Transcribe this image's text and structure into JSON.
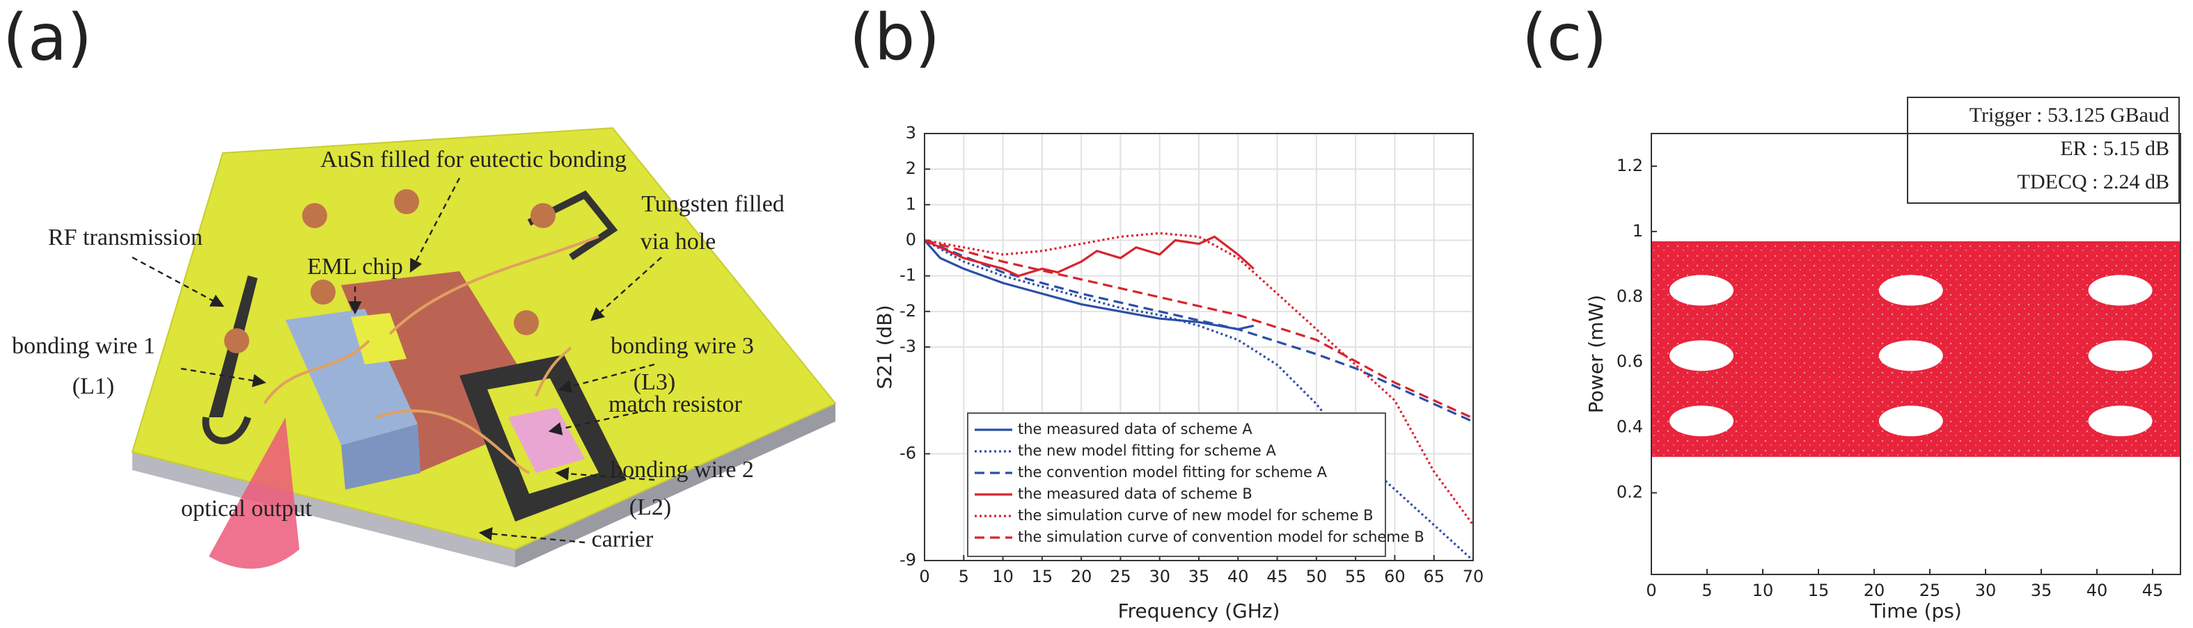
{
  "panel_labels": [
    "(a)",
    "(b)",
    "(c)"
  ],
  "diagram": {
    "labels": [
      "AuSn filled for eutectic bonding",
      "Tungsten filled",
      "via hole",
      "RF transmission",
      "EML chip",
      "bonding wire 3",
      "(L3)",
      "bonding wire 1",
      "(L1)",
      "match resistor",
      "bonding wire 2",
      "(L2)",
      "optical output",
      "carrier"
    ]
  },
  "chart_data": [
    {
      "type": "line",
      "xlabel": "Frequency (GHz)",
      "ylabel": "S21 (dB)",
      "xlim": [
        0,
        70
      ],
      "xticks": [
        0,
        5,
        10,
        15,
        20,
        25,
        30,
        35,
        40,
        45,
        50,
        55,
        60,
        65,
        70
      ],
      "ylim": [
        -9,
        3
      ],
      "yticks": [
        -9,
        -6,
        -3,
        -2,
        -1,
        0,
        1,
        2,
        3
      ],
      "grid": true,
      "series": [
        {
          "name": "the measured data of scheme A",
          "color": "#2b4ea8",
          "style": "solid",
          "x": [
            0,
            2,
            5,
            10,
            15,
            20,
            25,
            30,
            35,
            40,
            42
          ],
          "values": [
            0,
            -0.5,
            -0.8,
            -1.2,
            -1.5,
            -1.8,
            -2.0,
            -2.2,
            -2.3,
            -2.5,
            -2.4
          ]
        },
        {
          "name": "the new model fitting for scheme A",
          "color": "#2b4ea8",
          "style": "dotted",
          "x": [
            0,
            5,
            10,
            15,
            20,
            25,
            30,
            35,
            40,
            45,
            50,
            55,
            60,
            65,
            70
          ],
          "values": [
            0,
            -0.6,
            -1.0,
            -1.3,
            -1.6,
            -1.9,
            -2.1,
            -2.4,
            -2.8,
            -3.5,
            -4.6,
            -6,
            -7,
            -8,
            -9
          ]
        },
        {
          "name": "the convention model fitting for scheme A",
          "color": "#2b4ea8",
          "style": "dashed",
          "x": [
            0,
            10,
            20,
            30,
            40,
            50,
            55,
            60,
            65,
            70
          ],
          "values": [
            0,
            -0.9,
            -1.5,
            -2.0,
            -2.5,
            -3.2,
            -3.6,
            -4.1,
            -4.6,
            -5.1
          ]
        },
        {
          "name": "the measured data of scheme B",
          "color": "#d9232e",
          "style": "solid",
          "x": [
            0,
            5,
            10,
            12,
            15,
            17,
            20,
            22,
            25,
            27,
            30,
            32,
            35,
            37,
            40,
            42
          ],
          "values": [
            0,
            -0.5,
            -0.8,
            -1.0,
            -0.8,
            -0.9,
            -0.6,
            -0.3,
            -0.5,
            -0.2,
            -0.4,
            0,
            -0.1,
            0.1,
            -0.4,
            -0.8
          ]
        },
        {
          "name": "the simulation curve of new model for scheme B",
          "color": "#d9232e",
          "style": "dotted",
          "x": [
            0,
            5,
            10,
            15,
            20,
            25,
            30,
            35,
            40,
            45,
            50,
            55,
            60,
            65,
            70
          ],
          "values": [
            0,
            -0.2,
            -0.4,
            -0.3,
            -0.1,
            0.1,
            0.2,
            0.1,
            -0.5,
            -1.5,
            -2.5,
            -3.5,
            -4.5,
            -6.5,
            -8
          ]
        },
        {
          "name": "the simulation curve of convention model for scheme B",
          "color": "#d9232e",
          "style": "dashed",
          "x": [
            0,
            10,
            20,
            30,
            40,
            50,
            55,
            60,
            65,
            70
          ],
          "values": [
            0,
            -0.6,
            -1.1,
            -1.6,
            -2.1,
            -2.8,
            -3.4,
            -4,
            -4.5,
            -5
          ]
        }
      ]
    },
    {
      "type": "eye",
      "xlabel": "Time (ps)",
      "ylabel": "Power (mW)",
      "xlim": [
        0,
        47.5
      ],
      "xticks": [
        0,
        5,
        10,
        15,
        20,
        25,
        30,
        35,
        40,
        45
      ],
      "ylim": [
        -0.05,
        1.3
      ],
      "yticks": [
        0.2,
        0.4,
        0.6,
        0.8,
        1,
        1.2
      ],
      "color": "#e8243c",
      "band": [
        0.31,
        0.97
      ],
      "eye_centers": [
        4.5,
        23.3,
        42.1
      ],
      "eye_levels": [
        0.42,
        0.62,
        0.82
      ],
      "annotations": [
        "Trigger : 53.125 GBaud",
        "ER : 5.15 dB",
        "TDECQ : 2.24 dB"
      ]
    }
  ]
}
